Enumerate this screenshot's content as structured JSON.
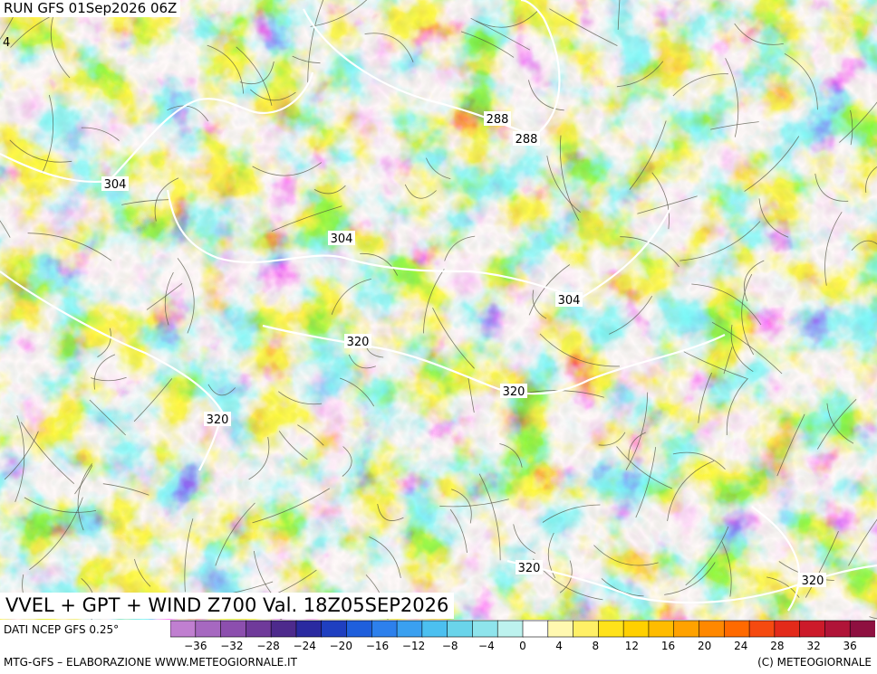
{
  "header": {
    "run_label": "RUN GFS 01Sep2026 06Z"
  },
  "map": {
    "title": "VVEL + GPT + WIND Z700 Val. 18Z05SEP2026",
    "corner_label": "4",
    "contour_labels": [
      {
        "text": "288"
      },
      {
        "text": "288"
      },
      {
        "text": "304"
      },
      {
        "text": "304"
      },
      {
        "text": "304"
      },
      {
        "text": "320"
      },
      {
        "text": "320"
      },
      {
        "text": "320"
      },
      {
        "text": "320"
      },
      {
        "text": "320"
      }
    ]
  },
  "legend": {
    "source_label": "DATI NCEP GFS 0.25°",
    "colors": [
      "#c07fd0",
      "#a668c0",
      "#8c4fae",
      "#6f3a9a",
      "#4d2a8c",
      "#2a2aa0",
      "#1f3fc0",
      "#1f5fdc",
      "#2d80ec",
      "#3aa0f0",
      "#4cc0f0",
      "#6ad4ea",
      "#8ee4ec",
      "#bdf2ee",
      "#ffffff",
      "#fff8b0",
      "#fff066",
      "#ffe21a",
      "#ffd000",
      "#ffbc00",
      "#ffa200",
      "#ff8800",
      "#ff6a00",
      "#f54a10",
      "#e32a1a",
      "#cc1a2a",
      "#b01438",
      "#8e1040"
    ],
    "ticks": [
      "−36",
      "−32",
      "−28",
      "−24",
      "−20",
      "−16",
      "−12",
      "−8",
      "−4",
      "0",
      "4",
      "8",
      "12",
      "16",
      "20",
      "24",
      "28",
      "32",
      "36"
    ]
  },
  "footer": {
    "left": "MTG-GFS – ELABORAZIONE WWW.METEOGIORNALE.IT",
    "right": "(C) METEOGIORNALE"
  }
}
